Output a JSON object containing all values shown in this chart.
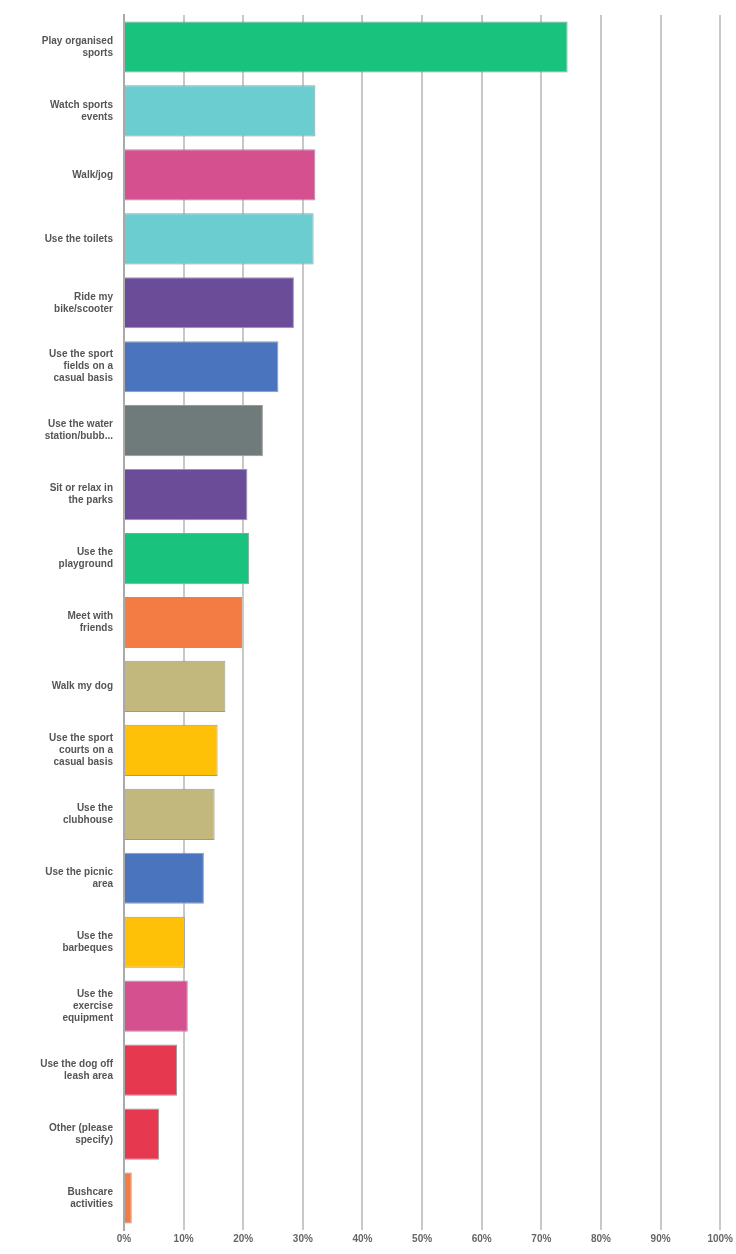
{
  "chart_data": {
    "type": "bar",
    "orientation": "horizontal",
    "categories": [
      "Play organised sports",
      "Watch sports events",
      "Walk/jog",
      "Use the toilets",
      "Ride my bike/scooter",
      "Use the sport fields on a casual basis",
      "Use the water station/bubb...",
      "Sit or relax in the parks",
      "Use the playground",
      "Meet with friends",
      "Walk my dog",
      "Use the sport courts on a casual basis",
      "Use the clubhouse",
      "Use the picnic area",
      "Use the barbeques",
      "Use the exercise equipment",
      "Use the dog off leash area",
      "Other (please specify)",
      "Bushcare activities"
    ],
    "values": [
      74.4,
      32.1,
      32.1,
      31.8,
      28.5,
      25.9,
      23.3,
      20.7,
      21.0,
      19.8,
      17.0,
      15.7,
      15.2,
      13.4,
      10.2,
      10.7,
      8.9,
      5.9,
      1.3
    ],
    "colors": [
      "#19c37d",
      "#6ccdd0",
      "#d4508f",
      "#6ccdd0",
      "#6a4c98",
      "#4a74bd",
      "#6f7a7a",
      "#6a4c98",
      "#19c37d",
      "#f37c45",
      "#c2b87e",
      "#ffc107",
      "#c2b87e",
      "#4a74bd",
      "#ffc107",
      "#d4508f",
      "#e63950",
      "#e63950",
      "#f37c45"
    ],
    "xlim": [
      0,
      100
    ],
    "xticks": [
      {
        "value": 0,
        "label": "0%"
      },
      {
        "value": 10,
        "label": "10%"
      },
      {
        "value": 20,
        "label": "20%"
      },
      {
        "value": 30,
        "label": "30%"
      },
      {
        "value": 40,
        "label": "40%"
      },
      {
        "value": 50,
        "label": "50%"
      },
      {
        "value": 60,
        "label": "60%"
      },
      {
        "value": 70,
        "label": "70%"
      },
      {
        "value": 80,
        "label": "80%"
      },
      {
        "value": 90,
        "label": "90%"
      },
      {
        "value": 100,
        "label": "100%"
      }
    ],
    "grid": "x"
  }
}
